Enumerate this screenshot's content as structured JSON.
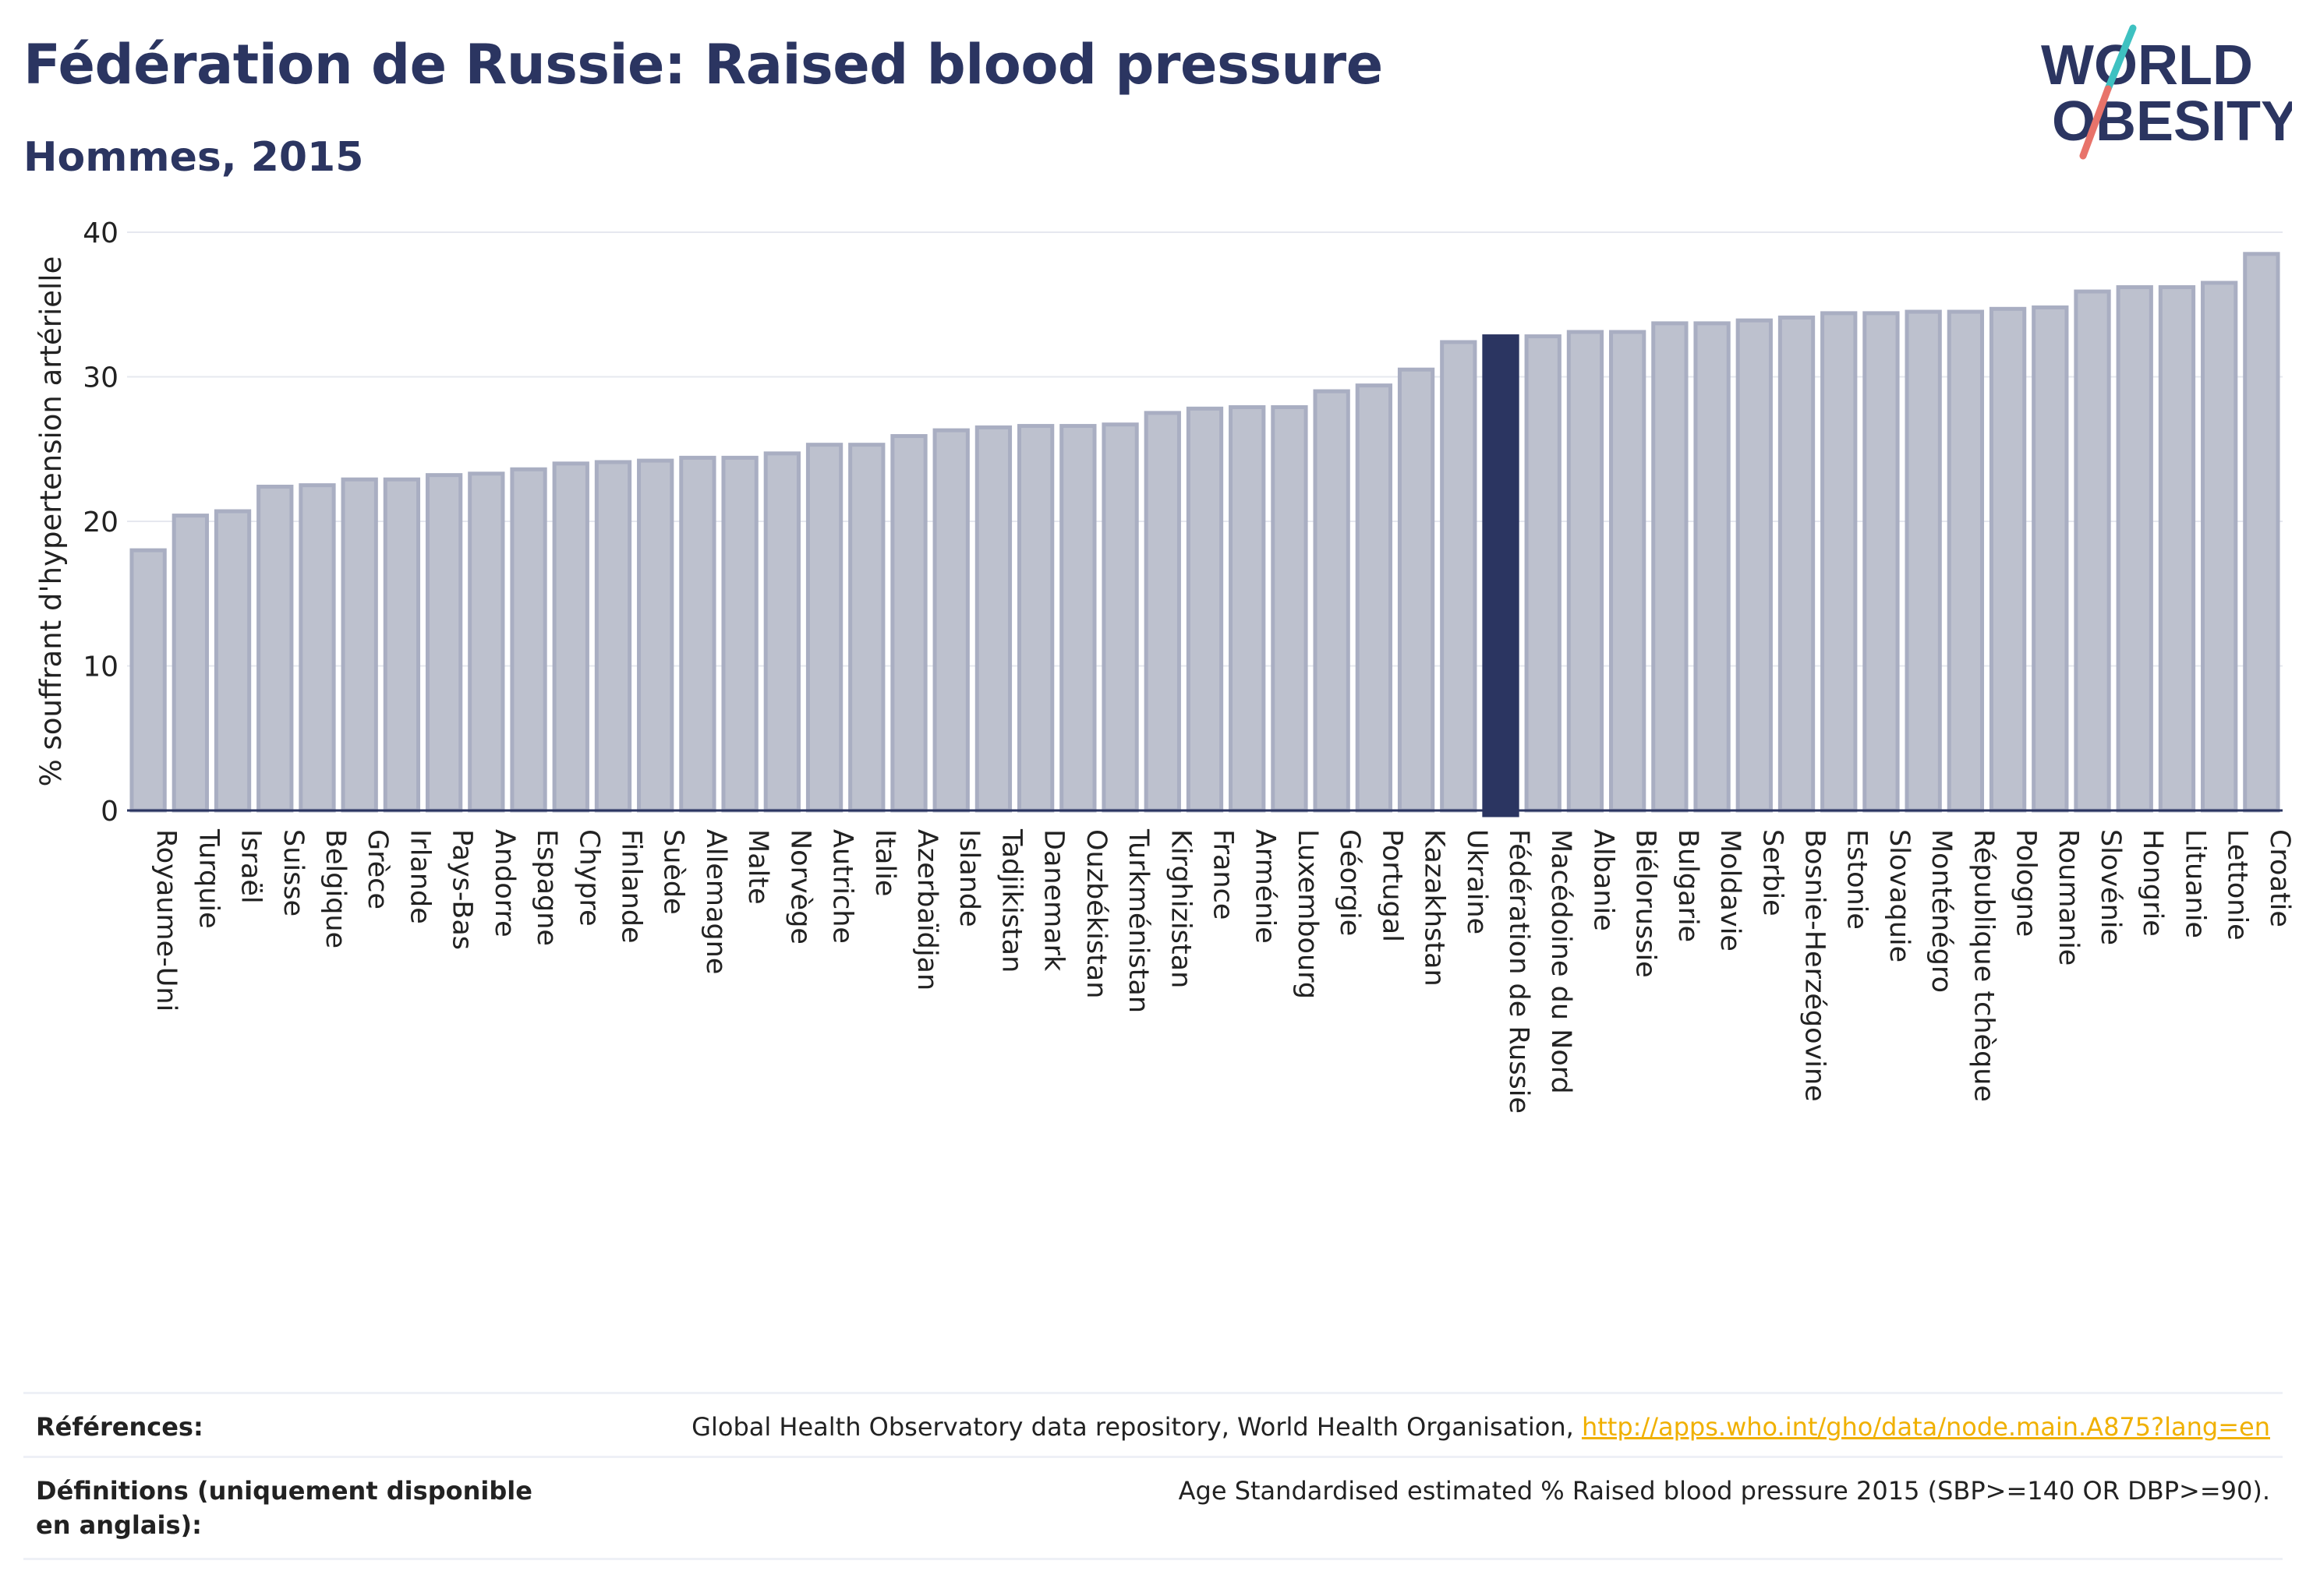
{
  "header": {
    "title": "Fédération de Russie: Raised blood pressure",
    "subtitle": "Hommes, 2015"
  },
  "logo": {
    "line1": "WORLD",
    "line2": "OBESITY"
  },
  "chart_data": {
    "type": "bar",
    "title": "Fédération de Russie: Raised blood pressure",
    "subtitle": "Hommes, 2015",
    "xlabel": "",
    "ylabel": "% souffrant d'hypertension artérielle",
    "ylim": [
      0,
      40
    ],
    "yticks": [
      0,
      10,
      20,
      30,
      40
    ],
    "grid": true,
    "highlight": "Fédération de Russie",
    "colors": {
      "bar": "#bdc1ce",
      "bar_edge": "#a9aec2",
      "highlight": "#2b3561",
      "grid": "#e6e8ef",
      "axis": "#2b3561"
    },
    "categories": [
      "Royaume-Uni",
      "Turquie",
      "Israël",
      "Suisse",
      "Belgique",
      "Grèce",
      "Irlande",
      "Pays-Bas",
      "Andorre",
      "Espagne",
      "Chypre",
      "Finlande",
      "Suède",
      "Allemagne",
      "Malte",
      "Norvège",
      "Autriche",
      "Italie",
      "Azerbaïdjan",
      "Islande",
      "Tadjikistan",
      "Danemark",
      "Ouzbékistan",
      "Turkménistan",
      "Kirghizistan",
      "France",
      "Arménie",
      "Luxembourg",
      "Géorgie",
      "Portugal",
      "Kazakhstan",
      "Ukraine",
      "Fédération de Russie",
      "Macédoine du Nord",
      "Albanie",
      "Biélorussie",
      "Bulgarie",
      "Moldavie",
      "Serbie",
      "Bosnie-Herzégovine",
      "Estonie",
      "Slovaquie",
      "Monténégro",
      "République tchèque",
      "Pologne",
      "Roumanie",
      "Slovénie",
      "Hongrie",
      "Lituanie",
      "Lettonie",
      "Croatie"
    ],
    "values": [
      18.0,
      20.4,
      20.7,
      22.4,
      22.5,
      22.9,
      22.9,
      23.2,
      23.3,
      23.6,
      24.0,
      24.1,
      24.2,
      24.4,
      24.4,
      24.7,
      25.3,
      25.3,
      25.9,
      26.3,
      26.5,
      26.6,
      26.6,
      26.7,
      27.5,
      27.8,
      27.9,
      27.9,
      29.0,
      29.4,
      30.5,
      32.4,
      32.8,
      32.8,
      33.1,
      33.1,
      33.7,
      33.7,
      33.9,
      34.1,
      34.4,
      34.4,
      34.5,
      34.5,
      34.7,
      34.8,
      35.9,
      36.2,
      36.2,
      36.5,
      38.5
    ]
  },
  "footer": {
    "references_label": "Références:",
    "references_text": "Global Health Observatory data repository, World Health Organisation, ",
    "references_link": "http://apps.who.int/gho/data/node.main.A875?lang=en",
    "definitions_label": "Définitions (uniquement disponible en anglais):",
    "definitions_text": "Age Standardised estimated % Raised blood pressure 2015 (SBP>=140 OR DBP>=90)."
  }
}
